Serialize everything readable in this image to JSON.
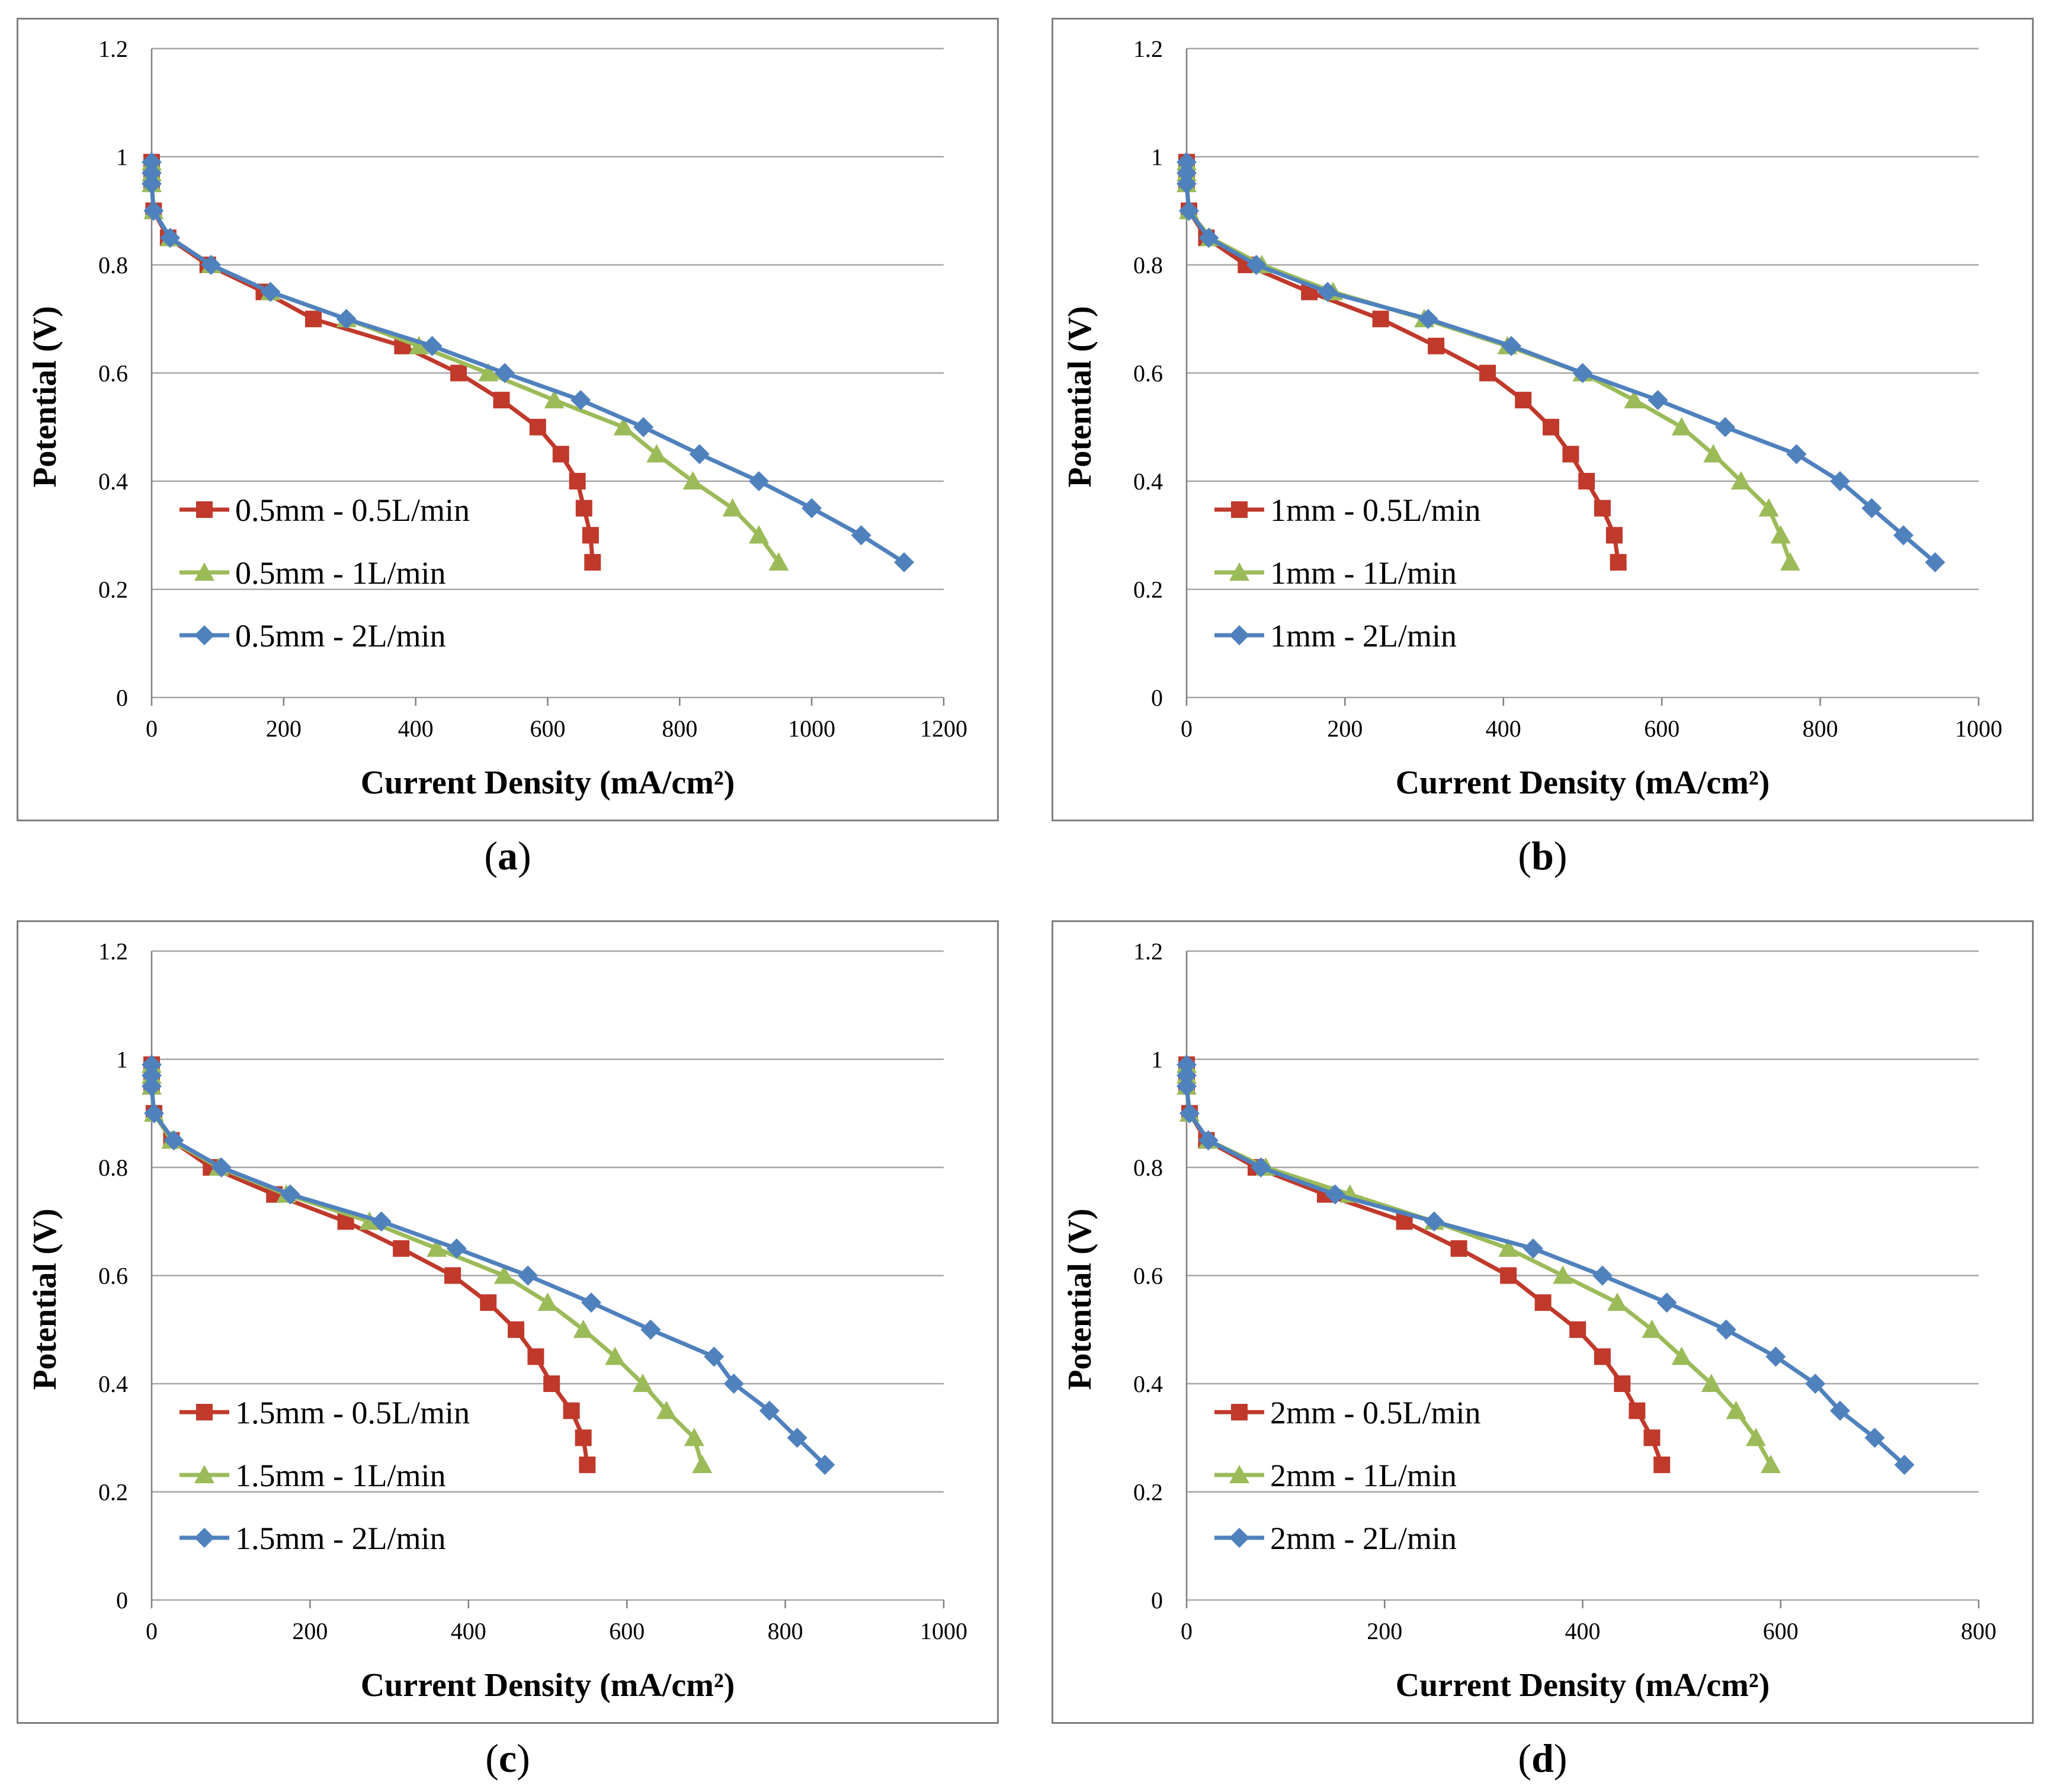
{
  "panels": [
    {
      "caption": "a"
    },
    {
      "caption": "b"
    },
    {
      "caption": "c"
    },
    {
      "caption": "d"
    }
  ],
  "chart_data": [
    {
      "type": "line",
      "xlabel": "Current Density (mA/cm²)",
      "ylabel": "Potential (V)",
      "xlim": [
        0,
        1200
      ],
      "ylim": [
        0,
        1.2
      ],
      "xticks": [
        0,
        200,
        400,
        600,
        800,
        1000,
        1200
      ],
      "yticks": [
        0,
        0.2,
        0.4,
        0.6,
        0.8,
        1,
        1.2
      ],
      "grid": "horizontal",
      "legend_position": "bottom-left",
      "series": [
        {
          "name": "0.5mm - 0.5L/min",
          "color": "#C0392B",
          "marker": "square",
          "x": [
            0,
            0,
            0,
            3,
            25,
            85,
            170,
            245,
            380,
            465,
            530,
            585,
            620,
            645,
            655,
            665,
            668
          ],
          "y": [
            0.99,
            0.97,
            0.95,
            0.9,
            0.85,
            0.8,
            0.75,
            0.7,
            0.65,
            0.6,
            0.55,
            0.5,
            0.45,
            0.4,
            0.35,
            0.3,
            0.25
          ]
        },
        {
          "name": "0.5mm - 1L/min",
          "color": "#9BBB59",
          "marker": "triangle",
          "x": [
            0,
            0,
            0,
            3,
            28,
            90,
            180,
            295,
            405,
            510,
            610,
            715,
            765,
            820,
            880,
            920,
            950
          ],
          "y": [
            0.99,
            0.97,
            0.95,
            0.9,
            0.85,
            0.8,
            0.75,
            0.7,
            0.65,
            0.6,
            0.55,
            0.5,
            0.45,
            0.4,
            0.35,
            0.3,
            0.25
          ]
        },
        {
          "name": "0.5mm - 2L/min",
          "color": "#4F81BD",
          "marker": "diamond",
          "x": [
            0,
            0,
            0,
            3,
            28,
            90,
            180,
            295,
            425,
            535,
            650,
            745,
            830,
            920,
            1000,
            1075,
            1140
          ],
          "y": [
            0.99,
            0.97,
            0.95,
            0.9,
            0.85,
            0.8,
            0.75,
            0.7,
            0.65,
            0.6,
            0.55,
            0.5,
            0.45,
            0.4,
            0.35,
            0.3,
            0.25
          ]
        }
      ]
    },
    {
      "type": "line",
      "xlabel": "Current Density (mA/cm²)",
      "ylabel": "Potential (V)",
      "xlim": [
        0,
        1000
      ],
      "ylim": [
        0,
        1.2
      ],
      "xticks": [
        0,
        200,
        400,
        600,
        800,
        1000
      ],
      "yticks": [
        0,
        0.2,
        0.4,
        0.6,
        0.8,
        1,
        1.2
      ],
      "grid": "horizontal",
      "legend_position": "bottom-left",
      "series": [
        {
          "name": "1mm - 0.5L/min",
          "color": "#C0392B",
          "marker": "square",
          "x": [
            0,
            0,
            0,
            3,
            25,
            75,
            155,
            245,
            315,
            380,
            425,
            460,
            485,
            505,
            525,
            540,
            545
          ],
          "y": [
            0.99,
            0.97,
            0.95,
            0.9,
            0.85,
            0.8,
            0.75,
            0.7,
            0.65,
            0.6,
            0.55,
            0.5,
            0.45,
            0.4,
            0.35,
            0.3,
            0.25
          ]
        },
        {
          "name": "1mm - 1L/min",
          "color": "#9BBB59",
          "marker": "triangle",
          "x": [
            0,
            0,
            0,
            3,
            30,
            95,
            185,
            300,
            405,
            500,
            565,
            625,
            665,
            700,
            735,
            750,
            762
          ],
          "y": [
            0.99,
            0.97,
            0.95,
            0.9,
            0.85,
            0.8,
            0.75,
            0.7,
            0.65,
            0.6,
            0.55,
            0.5,
            0.45,
            0.4,
            0.35,
            0.3,
            0.25
          ]
        },
        {
          "name": "1mm - 2L/min",
          "color": "#4F81BD",
          "marker": "diamond",
          "x": [
            0,
            0,
            0,
            3,
            28,
            88,
            178,
            305,
            410,
            500,
            595,
            680,
            770,
            825,
            865,
            905,
            945
          ],
          "y": [
            0.99,
            0.97,
            0.95,
            0.9,
            0.85,
            0.8,
            0.75,
            0.7,
            0.65,
            0.6,
            0.55,
            0.5,
            0.45,
            0.4,
            0.35,
            0.3,
            0.25
          ]
        }
      ]
    },
    {
      "type": "line",
      "xlabel": "Current Density (mA/cm²)",
      "ylabel": "Potential (V)",
      "xlim": [
        0,
        1000
      ],
      "ylim": [
        0,
        1.2
      ],
      "xticks": [
        0,
        200,
        400,
        600,
        800,
        1000
      ],
      "yticks": [
        0,
        0.2,
        0.4,
        0.6,
        0.8,
        1,
        1.2
      ],
      "grid": "horizontal",
      "legend_position": "bottom-left",
      "series": [
        {
          "name": "1.5mm - 0.5L/min",
          "color": "#C0392B",
          "marker": "square",
          "x": [
            0,
            0,
            0,
            3,
            25,
            75,
            155,
            245,
            315,
            380,
            425,
            460,
            485,
            505,
            530,
            545,
            550
          ],
          "y": [
            0.99,
            0.97,
            0.95,
            0.9,
            0.85,
            0.8,
            0.75,
            0.7,
            0.65,
            0.6,
            0.55,
            0.5,
            0.45,
            0.4,
            0.35,
            0.3,
            0.25
          ]
        },
        {
          "name": "1.5mm - 1L/min",
          "color": "#9BBB59",
          "marker": "triangle",
          "x": [
            0,
            0,
            0,
            3,
            25,
            85,
            170,
            275,
            360,
            445,
            500,
            545,
            585,
            620,
            650,
            685,
            695
          ],
          "y": [
            0.99,
            0.97,
            0.95,
            0.9,
            0.85,
            0.8,
            0.75,
            0.7,
            0.65,
            0.6,
            0.55,
            0.5,
            0.45,
            0.4,
            0.35,
            0.3,
            0.25
          ]
        },
        {
          "name": "1.5mm - 2L/min",
          "color": "#4F81BD",
          "marker": "diamond",
          "x": [
            0,
            0,
            0,
            3,
            28,
            88,
            175,
            290,
            385,
            475,
            555,
            630,
            710,
            735,
            780,
            815,
            850
          ],
          "y": [
            0.99,
            0.97,
            0.95,
            0.9,
            0.85,
            0.8,
            0.75,
            0.7,
            0.65,
            0.6,
            0.55,
            0.5,
            0.45,
            0.4,
            0.35,
            0.3,
            0.25
          ]
        }
      ]
    },
    {
      "type": "line",
      "xlabel": "Current Density (mA/cm²)",
      "ylabel": "Potential (V)",
      "xlim": [
        0,
        800
      ],
      "ylim": [
        0,
        1.2
      ],
      "xticks": [
        0,
        200,
        400,
        600,
        800
      ],
      "yticks": [
        0,
        0.2,
        0.4,
        0.6,
        0.8,
        1,
        1.2
      ],
      "grid": "horizontal",
      "legend_position": "bottom-left",
      "series": [
        {
          "name": "2mm - 0.5L/min",
          "color": "#C0392B",
          "marker": "square",
          "x": [
            0,
            0,
            0,
            3,
            20,
            70,
            140,
            220,
            275,
            325,
            360,
            395,
            420,
            440,
            455,
            470,
            480
          ],
          "y": [
            0.99,
            0.97,
            0.95,
            0.9,
            0.85,
            0.8,
            0.75,
            0.7,
            0.65,
            0.6,
            0.55,
            0.5,
            0.45,
            0.4,
            0.35,
            0.3,
            0.25
          ]
        },
        {
          "name": "2mm - 1L/min",
          "color": "#9BBB59",
          "marker": "triangle",
          "x": [
            0,
            0,
            0,
            3,
            22,
            80,
            165,
            250,
            325,
            380,
            435,
            470,
            500,
            530,
            555,
            575,
            590
          ],
          "y": [
            0.99,
            0.97,
            0.95,
            0.9,
            0.85,
            0.8,
            0.75,
            0.7,
            0.65,
            0.6,
            0.55,
            0.5,
            0.45,
            0.4,
            0.35,
            0.3,
            0.25
          ]
        },
        {
          "name": "2mm - 2L/min",
          "color": "#4F81BD",
          "marker": "diamond",
          "x": [
            0,
            0,
            0,
            3,
            22,
            75,
            150,
            250,
            350,
            420,
            485,
            545,
            595,
            635,
            660,
            695,
            725
          ],
          "y": [
            0.99,
            0.97,
            0.95,
            0.9,
            0.85,
            0.8,
            0.75,
            0.7,
            0.65,
            0.6,
            0.55,
            0.5,
            0.45,
            0.4,
            0.35,
            0.3,
            0.25
          ]
        }
      ]
    }
  ]
}
